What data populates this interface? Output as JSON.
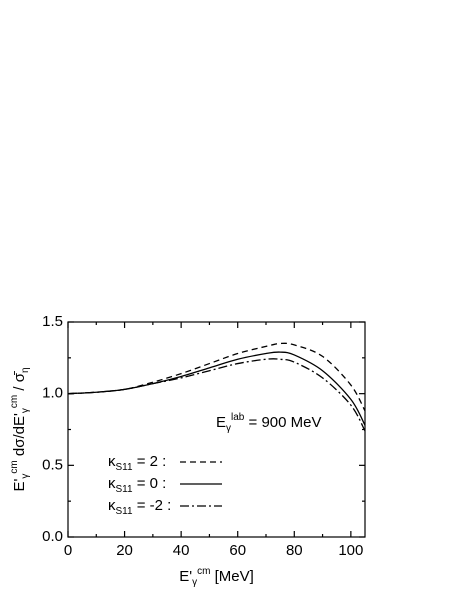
{
  "chart_data": {
    "type": "line",
    "xlabel": [
      {
        "text": "E'"
      },
      {
        "text": "γ",
        "shift": "sub"
      },
      {
        "text": "cm",
        "shift": "super"
      },
      {
        "text": " [MeV]"
      }
    ],
    "ylabel": [
      {
        "text": "E'"
      },
      {
        "text": "γ",
        "shift": "sub"
      },
      {
        "text": "cm",
        "shift": "super"
      },
      {
        "text": " dσ/dE'"
      },
      {
        "text": "γ",
        "shift": "sub"
      },
      {
        "text": "cm",
        "shift": "super"
      },
      {
        "text": " / σ̄"
      },
      {
        "text": "η",
        "shift": "sub"
      }
    ],
    "annotation": [
      {
        "text": "E"
      },
      {
        "text": "γ",
        "shift": "sub"
      },
      {
        "text": "lab",
        "shift": "super"
      },
      {
        "text": " = 900 MeV"
      }
    ],
    "x": [
      0,
      10,
      20,
      30,
      40,
      50,
      60,
      70,
      75,
      80,
      90,
      100,
      105
    ],
    "series": [
      {
        "name": [
          {
            "text": "κ"
          },
          {
            "text": "S11",
            "shift": "sub"
          },
          {
            "text": " = 2  :"
          }
        ],
        "color": "#000000",
        "dash": "dashed",
        "values": [
          1.0,
          1.01,
          1.03,
          1.08,
          1.14,
          1.21,
          1.28,
          1.33,
          1.35,
          1.34,
          1.26,
          1.06,
          0.88
        ]
      },
      {
        "name": [
          {
            "text": "κ"
          },
          {
            "text": "S11",
            "shift": "sub"
          },
          {
            "text": " = 0  :"
          }
        ],
        "color": "#000000",
        "dash": "solid",
        "values": [
          1.0,
          1.01,
          1.03,
          1.07,
          1.12,
          1.18,
          1.24,
          1.28,
          1.29,
          1.27,
          1.16,
          0.96,
          0.78
        ]
      },
      {
        "name": [
          {
            "text": "κ"
          },
          {
            "text": "S11",
            "shift": "sub"
          },
          {
            "text": " = -2 :"
          }
        ],
        "color": "#000000",
        "dash": "dashdot",
        "values": [
          1.0,
          1.01,
          1.03,
          1.07,
          1.11,
          1.16,
          1.21,
          1.24,
          1.24,
          1.22,
          1.11,
          0.92,
          0.74
        ]
      }
    ],
    "xlim": [
      0,
      105
    ],
    "ylim": [
      0,
      1.5
    ],
    "xticks": [
      0,
      20,
      40,
      60,
      80,
      100
    ],
    "xminorticks": [
      10,
      30,
      50,
      70,
      90
    ],
    "yticks": [
      {
        "value": 0,
        "label": "0.0"
      },
      0.5,
      {
        "value": 1,
        "label": "1.0"
      },
      1.5
    ],
    "yminorticks": [
      0.25,
      0.75,
      1.25
    ]
  }
}
